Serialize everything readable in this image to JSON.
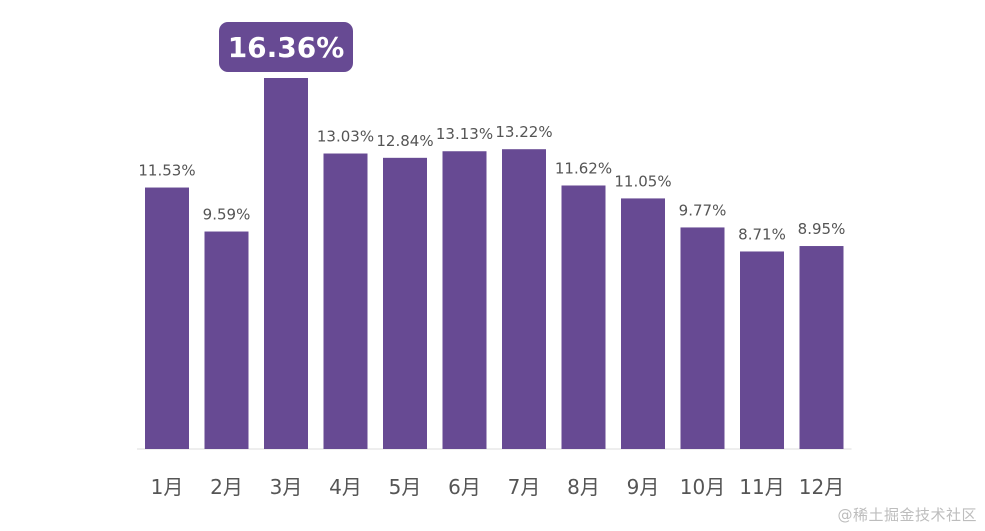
{
  "chart_data": {
    "type": "bar",
    "categories": [
      "1月",
      "2月",
      "3月",
      "4月",
      "5月",
      "6月",
      "7月",
      "8月",
      "9月",
      "10月",
      "11月",
      "12月"
    ],
    "values": [
      11.53,
      9.59,
      16.36,
      13.03,
      12.84,
      13.13,
      13.22,
      11.62,
      11.05,
      9.77,
      8.71,
      8.95
    ],
    "value_labels": [
      "11.53%",
      "9.59%",
      "16.36%",
      "13.03%",
      "12.84%",
      "13.13%",
      "13.22%",
      "11.62%",
      "11.05%",
      "9.77%",
      "8.71%",
      "8.95%"
    ],
    "highlight_index": 2,
    "ylim": [
      0,
      16.36
    ],
    "grid": false,
    "legend": "none",
    "title": "",
    "xlabel": "",
    "ylabel": ""
  },
  "colors": {
    "bar": "#674a93",
    "label": "#555555",
    "highlight_text": "#ffffff",
    "axis": "#dddddd"
  },
  "watermark": "@稀土掘金技术社区"
}
